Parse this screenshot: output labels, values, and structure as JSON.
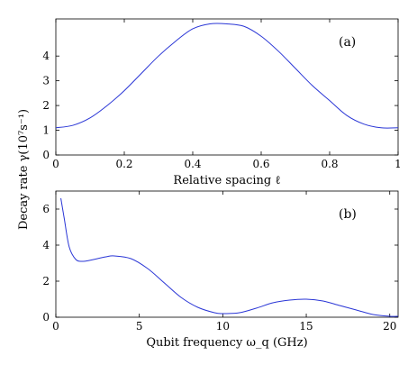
{
  "chart_data": [
    {
      "type": "line",
      "panel_label": "(a)",
      "xlabel": "Relative spacing ℓ",
      "ylabel": "",
      "xlim": [
        0,
        1
      ],
      "ylim": [
        0,
        5.5
      ],
      "xticks": [
        0,
        0.2,
        0.4,
        0.6,
        0.8,
        1
      ],
      "xtick_labels": [
        "0",
        "0.2",
        "0.4",
        "0.6",
        "0.8",
        "1"
      ],
      "yticks": [
        0,
        1,
        2,
        3,
        4
      ],
      "ytick_labels": [
        "0",
        "1",
        "2",
        "3",
        "4"
      ],
      "grid": false,
      "color": "#2a36d6",
      "series": [
        {
          "x": [
            0,
            0.05,
            0.1,
            0.15,
            0.2,
            0.25,
            0.3,
            0.35,
            0.4,
            0.45,
            0.5,
            0.55,
            0.6,
            0.65,
            0.7,
            0.75,
            0.8,
            0.85,
            0.9,
            0.95,
            1
          ],
          "values": [
            1.1,
            1.2,
            1.5,
            2.0,
            2.6,
            3.3,
            4.0,
            4.6,
            5.1,
            5.3,
            5.3,
            5.2,
            4.8,
            4.2,
            3.5,
            2.8,
            2.2,
            1.6,
            1.25,
            1.1,
            1.1
          ]
        }
      ]
    },
    {
      "type": "line",
      "panel_label": "(b)",
      "xlabel": "Qubit frequency ω_q (GHz)",
      "ylabel": "",
      "xlim": [
        0,
        20.5
      ],
      "ylim": [
        0,
        7
      ],
      "xticks": [
        0,
        5,
        10,
        15,
        20
      ],
      "xtick_labels": [
        "0",
        "5",
        "10",
        "15",
        "20"
      ],
      "yticks": [
        0,
        2,
        4,
        6
      ],
      "ytick_labels": [
        "0",
        "2",
        "4",
        "6"
      ],
      "grid": false,
      "color": "#2a36d6",
      "series": [
        {
          "x": [
            0.3,
            0.5,
            0.8,
            1.2,
            1.6,
            2.0,
            3.0,
            3.5,
            4.5,
            5.5,
            6.5,
            7.5,
            8.5,
            9.5,
            10,
            11,
            12,
            13,
            14,
            15,
            16,
            17,
            18,
            19,
            20,
            20.5
          ],
          "values": [
            6.6,
            5.5,
            3.9,
            3.2,
            3.1,
            3.15,
            3.35,
            3.4,
            3.25,
            2.7,
            1.9,
            1.1,
            0.55,
            0.25,
            0.2,
            0.25,
            0.5,
            0.8,
            0.95,
            1.0,
            0.9,
            0.65,
            0.4,
            0.15,
            0.05,
            0.05
          ]
        }
      ]
    }
  ],
  "shared_ylabel": "Decay rate γ(10⁷s⁻¹)"
}
